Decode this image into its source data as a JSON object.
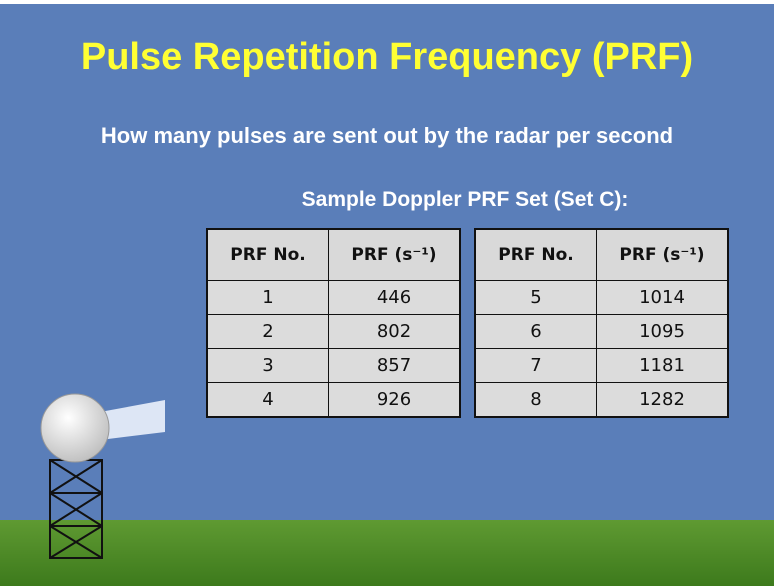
{
  "header": {
    "title": "Pulse Repetition Frequency (PRF)",
    "subtitle": "How many pulses are sent out by the radar per second"
  },
  "caption": "Sample Doppler PRF Set (Set C):",
  "tables": [
    {
      "header": [
        "PRF No.",
        "PRF (s⁻¹)"
      ],
      "rows": [
        [
          1,
          446
        ],
        [
          2,
          802
        ],
        [
          3,
          857
        ],
        [
          4,
          926
        ]
      ]
    },
    {
      "header": [
        "PRF No.",
        "PRF (s⁻¹)"
      ],
      "rows": [
        [
          5,
          1014
        ],
        [
          6,
          1095
        ],
        [
          7,
          1181
        ],
        [
          8,
          1282
        ]
      ]
    }
  ]
}
